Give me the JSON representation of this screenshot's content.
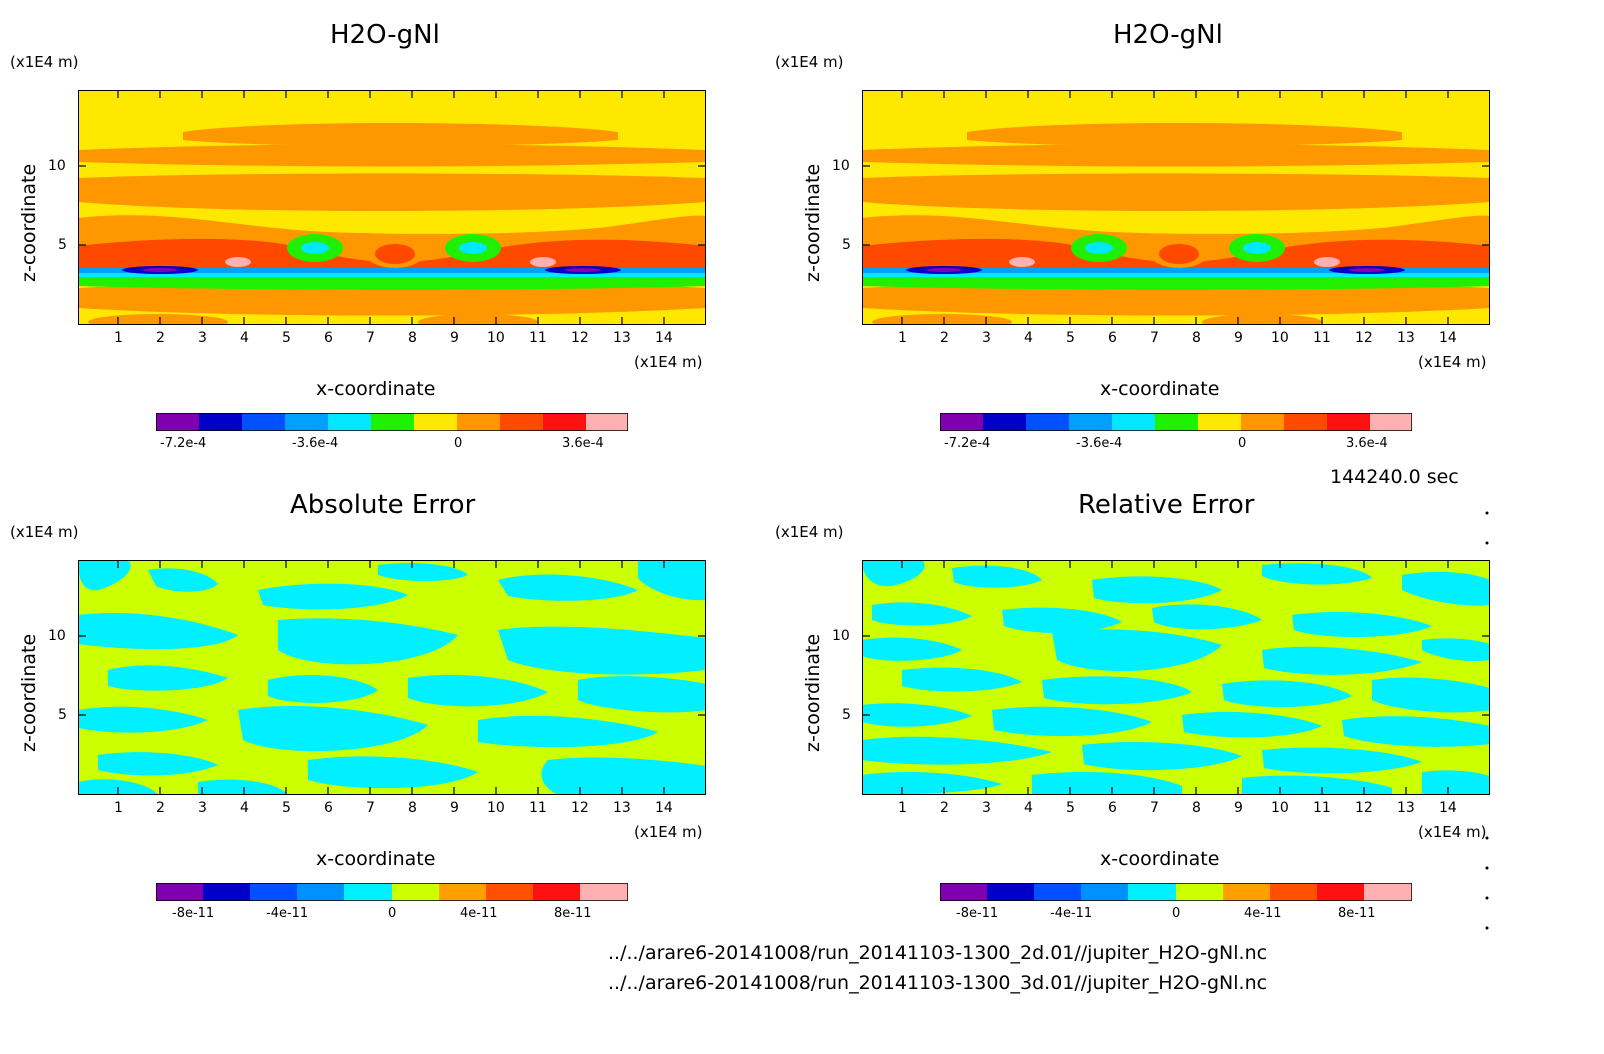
{
  "panels": [
    {
      "title": "H2O-gNl",
      "x_unit": "(x1E4 m)",
      "z_unit": "(x1E4 m)",
      "xlabel": "x-coordinate",
      "ylabel": "z-coordinate",
      "x_ticks": [
        "1",
        "2",
        "3",
        "4",
        "5",
        "6",
        "7",
        "8",
        "9",
        "10",
        "11",
        "12",
        "13",
        "14"
      ],
      "z_ticks": [
        "5",
        "10"
      ],
      "colorbar_tick_labels": [
        "-7.2e-4",
        "-3.6e-4",
        "0",
        "3.6e-4"
      ]
    },
    {
      "title": "H2O-gNl",
      "x_unit": "(x1E4 m)",
      "z_unit": "(x1E4 m)",
      "xlabel": "x-coordinate",
      "ylabel": "z-coordinate",
      "x_ticks": [
        "1",
        "2",
        "3",
        "4",
        "5",
        "6",
        "7",
        "8",
        "9",
        "10",
        "11",
        "12",
        "13",
        "14"
      ],
      "z_ticks": [
        "5",
        "10"
      ],
      "colorbar_tick_labels": [
        "-7.2e-4",
        "-3.6e-4",
        "0",
        "3.6e-4"
      ]
    },
    {
      "title": "Absolute Error",
      "x_unit": "(x1E4 m)",
      "z_unit": "(x1E4 m)",
      "xlabel": "x-coordinate",
      "ylabel": "z-coordinate",
      "x_ticks": [
        "1",
        "2",
        "3",
        "4",
        "5",
        "6",
        "7",
        "8",
        "9",
        "10",
        "11",
        "12",
        "13",
        "14"
      ],
      "z_ticks": [
        "5",
        "10"
      ],
      "colorbar_tick_labels": [
        "-8e-11",
        "-4e-11",
        "0",
        "4e-11",
        "8e-11"
      ]
    },
    {
      "title": "Relative Error",
      "x_unit": "(x1E4 m)",
      "z_unit": "(x1E4 m)",
      "xlabel": "x-coordinate",
      "ylabel": "z-coordinate",
      "x_ticks": [
        "1",
        "2",
        "3",
        "4",
        "5",
        "6",
        "7",
        "8",
        "9",
        "10",
        "11",
        "12",
        "13",
        "14"
      ],
      "z_ticks": [
        "5",
        "10"
      ],
      "colorbar_tick_labels": [
        "-8e-11",
        "-4e-11",
        "0",
        "4e-11",
        "8e-11"
      ]
    }
  ],
  "time_label": "144240.0 sec",
  "file_paths": [
    "../../arare6-20141008/run_20141103-1300_2d.01//jupiter_H2O-gNl.nc",
    "../../arare6-20141008/run_20141103-1300_3d.01//jupiter_H2O-gNl.nc"
  ],
  "colors": {
    "scale_H2O": [
      "#8000b0",
      "#0000c8",
      "#0050ff",
      "#00a0ff",
      "#00e8ff",
      "#20f000",
      "#ffe800",
      "#ff9800",
      "#ff4800",
      "#ff1010",
      "#ffb0b0"
    ],
    "scale_error": [
      "#8000b0",
      "#0000c8",
      "#0050ff",
      "#0090ff",
      "#00f0ff",
      "#ccff00",
      "#ffa000",
      "#ff5000",
      "#ff1010",
      "#ffb0b0"
    ]
  },
  "chart_data": [
    {
      "type": "heatmap",
      "title": "H2O-gNl",
      "xlabel": "x-coordinate",
      "ylabel": "z-coordinate",
      "x_unit": "(x1E4 m)",
      "z_unit": "(x1E4 m)",
      "xlim": [
        0,
        15
      ],
      "zlim": [
        0,
        15
      ],
      "colorbar_levels": [
        -0.00084,
        -0.00072,
        -0.0006,
        -0.00048,
        -0.00036,
        -0.00024,
        -0.00012,
        0,
        0.00012,
        0.00024,
        0.00036,
        0.00048
      ],
      "background_value": 0,
      "features": [
        {
          "band": "orange",
          "level": 0.00012,
          "x": [
            2.5,
            13.0
          ],
          "z": [
            12.2,
            13.0
          ]
        },
        {
          "band": "orange",
          "level": 0.00012,
          "x": [
            0,
            15
          ],
          "z": [
            10.8,
            11.3
          ]
        },
        {
          "band": "orange",
          "level": 0.00012,
          "x": [
            0,
            15
          ],
          "z": [
            7.6,
            9.6
          ]
        },
        {
          "band": "orange",
          "level": 0.00012,
          "x": [
            0,
            15
          ],
          "z": [
            4.4,
            7.0
          ]
        },
        {
          "band": "orange",
          "level": 0.00012,
          "x": [
            0,
            15
          ],
          "z": [
            0.3,
            2.0
          ]
        },
        {
          "band": "red",
          "level": 0.00024,
          "x": [
            0,
            15
          ],
          "z": [
            3.6,
            4.6
          ]
        },
        {
          "band": "blue",
          "level": -0.0006,
          "x": [
            2.0,
            3.2
          ],
          "z": [
            3.2,
            3.6
          ]
        },
        {
          "band": "blue",
          "level": -0.0006,
          "x": [
            11.8,
            13.0
          ],
          "z": [
            3.2,
            3.6
          ]
        },
        {
          "band": "green",
          "level": -0.00012,
          "x": [
            0,
            15
          ],
          "z": [
            2.3,
            3.0
          ]
        },
        {
          "band": "green",
          "level": -0.00012,
          "x": [
            5.0,
            6.2
          ],
          "z": [
            4.3,
            5.3
          ]
        },
        {
          "band": "green",
          "level": -0.00012,
          "x": [
            8.4,
            9.6
          ],
          "z": [
            4.3,
            5.3
          ]
        },
        {
          "band": "red",
          "level": 0.00024,
          "x": [
            7.1,
            8.3
          ],
          "z": [
            4.1,
            5.4
          ]
        },
        {
          "band": "pink",
          "level": 0.00036,
          "x": [
            3.7,
            4.2
          ],
          "z": [
            3.9,
            4.3
          ]
        },
        {
          "band": "pink",
          "level": 0.00036,
          "x": [
            10.8,
            11.3
          ],
          "z": [
            3.9,
            4.3
          ]
        }
      ]
    },
    {
      "type": "heatmap",
      "title": "H2O-gNl",
      "xlabel": "x-coordinate",
      "ylabel": "z-coordinate",
      "x_unit": "(x1E4 m)",
      "z_unit": "(x1E4 m)",
      "xlim": [
        0,
        15
      ],
      "zlim": [
        0,
        15
      ],
      "colorbar_levels": [
        -0.00084,
        -0.00072,
        -0.0006,
        -0.00048,
        -0.00036,
        -0.00024,
        -0.00012,
        0,
        0.00012,
        0.00024,
        0.00036,
        0.00048
      ],
      "background_value": 0,
      "features": "same as previous panel"
    },
    {
      "type": "heatmap",
      "title": "Absolute Error",
      "xlabel": "x-coordinate",
      "ylabel": "z-coordinate",
      "x_unit": "(x1E4 m)",
      "z_unit": "(x1E4 m)",
      "xlim": [
        0,
        15
      ],
      "zlim": [
        0,
        15
      ],
      "colorbar_levels": [
        -1e-10,
        -8e-11,
        -6e-11,
        -4e-11,
        -2e-11,
        0,
        2e-11,
        4e-11,
        6e-11,
        8e-11,
        1e-10
      ],
      "dominant_values": [
        -1e-11,
        1e-11
      ]
    },
    {
      "type": "heatmap",
      "title": "Relative Error",
      "xlabel": "x-coordinate",
      "ylabel": "z-coordinate",
      "x_unit": "(x1E4 m)",
      "z_unit": "(x1E4 m)",
      "xlim": [
        0,
        15
      ],
      "zlim": [
        0,
        15
      ],
      "colorbar_levels": [
        -1e-10,
        -8e-11,
        -6e-11,
        -4e-11,
        -2e-11,
        0,
        2e-11,
        4e-11,
        6e-11,
        8e-11,
        1e-10
      ],
      "dominant_values": [
        -1e-11,
        1e-11
      ]
    }
  ]
}
